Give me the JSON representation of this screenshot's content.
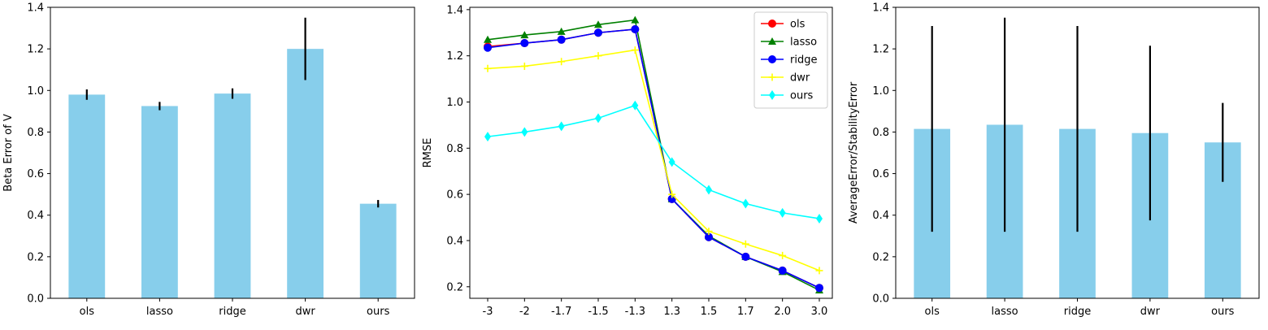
{
  "chart_data": [
    {
      "type": "bar",
      "categories": [
        "ols",
        "lasso",
        "ridge",
        "dwr",
        "ours"
      ],
      "values": [
        0.98,
        0.925,
        0.985,
        1.2,
        0.455
      ],
      "error": [
        0.025,
        0.02,
        0.025,
        0.15,
        0.018
      ],
      "color": "#87ceeb",
      "xlabel": "",
      "ylabel": "Beta Error of V",
      "ylim": [
        0,
        1.4
      ],
      "yticks": [
        "0.0",
        "0.2",
        "0.4",
        "0.6",
        "0.8",
        "1.0",
        "1.2",
        "1.4"
      ],
      "grid": false
    },
    {
      "type": "line",
      "categories": [
        "-3",
        "-2",
        "-1.7",
        "-1.5",
        "-1.3",
        "1.3",
        "1.5",
        "1.7",
        "2.0",
        "3.0"
      ],
      "series": [
        {
          "name": "ols",
          "color": "#ff0000",
          "marker": "circle",
          "values": [
            1.24,
            1.255,
            1.27,
            1.3,
            1.315,
            0.58,
            0.415,
            0.33,
            0.27,
            0.195
          ]
        },
        {
          "name": "lasso",
          "color": "#008000",
          "marker": "triangle",
          "values": [
            1.27,
            1.29,
            1.305,
            1.335,
            1.355,
            0.58,
            0.42,
            0.33,
            0.265,
            0.185
          ]
        },
        {
          "name": "ridge",
          "color": "#0000ff",
          "marker": "circle",
          "values": [
            1.235,
            1.255,
            1.27,
            1.3,
            1.315,
            0.58,
            0.415,
            0.33,
            0.27,
            0.195
          ]
        },
        {
          "name": "dwr",
          "color": "#ffff00",
          "marker": "plus",
          "values": [
            1.145,
            1.155,
            1.175,
            1.2,
            1.225,
            0.6,
            0.44,
            0.385,
            0.335,
            0.27
          ]
        },
        {
          "name": "ours",
          "color": "#00ffff",
          "marker": "diamond",
          "values": [
            0.85,
            0.87,
            0.895,
            0.93,
            0.985,
            0.74,
            0.62,
            0.56,
            0.52,
            0.495
          ]
        }
      ],
      "xlabel": "",
      "ylabel": "RMSE",
      "ylim": [
        0.15,
        1.41
      ],
      "yticks": [
        "0.2",
        "0.4",
        "0.6",
        "0.8",
        "1.0",
        "1.2",
        "1.4"
      ],
      "legend_position": "top-right",
      "grid": false
    },
    {
      "type": "bar",
      "categories": [
        "ols",
        "lasso",
        "ridge",
        "dwr",
        "ours"
      ],
      "values": [
        0.815,
        0.835,
        0.815,
        0.795,
        0.75
      ],
      "error": [
        0.495,
        0.515,
        0.495,
        0.42,
        0.19
      ],
      "color": "#87ceeb",
      "xlabel": "",
      "ylabel": "AverageError/StabilityError",
      "ylim": [
        0,
        1.4
      ],
      "yticks": [
        "0.0",
        "0.2",
        "0.4",
        "0.6",
        "0.8",
        "1.0",
        "1.2",
        "1.4"
      ],
      "grid": false
    }
  ]
}
